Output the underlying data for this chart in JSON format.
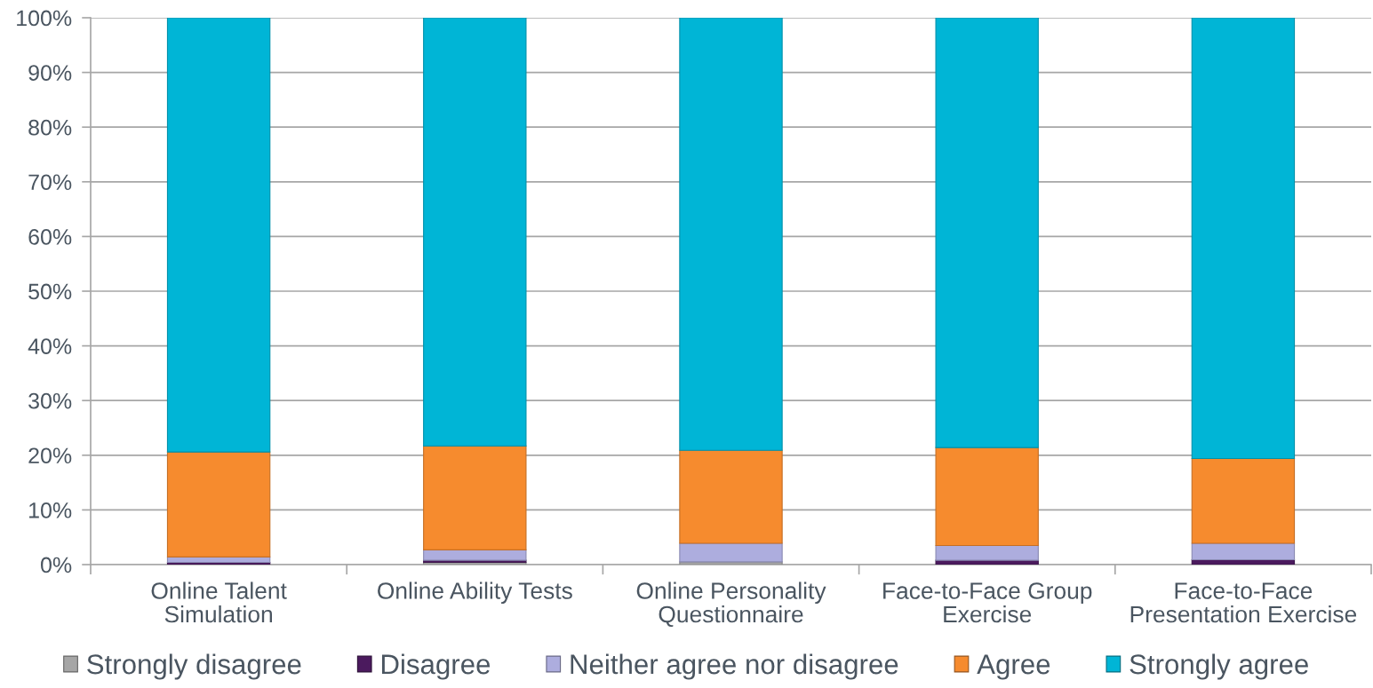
{
  "chart_data": {
    "type": "bar",
    "stacked": true,
    "categories": [
      "Online Talent\nSimulation",
      "Online Ability Tests",
      "Online Personality\nQuestionnaire",
      "Face-to-Face Group\nExercise",
      "Face-to-Face\nPresentation Exercise"
    ],
    "series": [
      {
        "name": "Strongly disagree",
        "color": "#a6a6a6",
        "values": [
          null,
          0.4,
          0.5,
          null,
          null
        ]
      },
      {
        "name": "Disagree",
        "color": "#4b1a5e",
        "values": [
          0.4,
          0.4,
          null,
          0.8,
          0.9
        ]
      },
      {
        "name": "Neither agree nor disagree",
        "color": "#adadde",
        "values": [
          1.0,
          1.9,
          3.4,
          2.7,
          3.0
        ]
      },
      {
        "name": "Agree",
        "color": "#f68b2e",
        "values": [
          19.2,
          19.0,
          17.0,
          17.9,
          15.5
        ]
      },
      {
        "name": "Strongly agree",
        "color": "#00b5d6",
        "values": [
          79.4,
          78.3,
          79.1,
          78.6,
          80.6
        ]
      }
    ],
    "ylim": [
      0,
      100
    ],
    "yticks": [
      {
        "value": 0,
        "label": "0%"
      },
      {
        "value": 10,
        "label": "10%"
      },
      {
        "value": 20,
        "label": "20%"
      },
      {
        "value": 30,
        "label": "30%"
      },
      {
        "value": 40,
        "label": "40%"
      },
      {
        "value": 50,
        "label": "50%"
      },
      {
        "value": 60,
        "label": "60%"
      },
      {
        "value": 70,
        "label": "70%"
      },
      {
        "value": 80,
        "label": "80%"
      },
      {
        "value": 90,
        "label": "90%"
      },
      {
        "value": 100,
        "label": "100%"
      }
    ],
    "grid": "y",
    "legend": "bottom"
  }
}
